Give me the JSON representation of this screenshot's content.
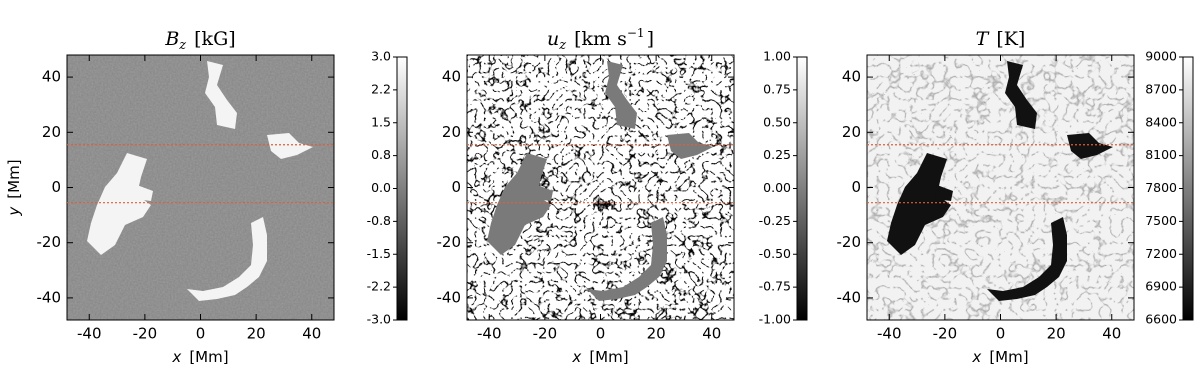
{
  "chart_data": [
    {
      "type": "heatmap",
      "title": {
        "var": "B",
        "sub": "z",
        "unit": "[kG]"
      },
      "xlabel": {
        "var": "x",
        "unit": "[Mm]"
      },
      "ylabel": {
        "var": "y",
        "unit": "[Mm]"
      },
      "xlim": [
        -48,
        48
      ],
      "ylim": [
        -48,
        48
      ],
      "xticks": [
        -40,
        -20,
        0,
        20,
        40
      ],
      "yticks": [
        -40,
        -20,
        0,
        20,
        40
      ],
      "hlines": [
        15.5,
        -5.5
      ],
      "hline_color": "#d9603b",
      "colormap": "gray",
      "clim": [
        -3,
        3
      ],
      "cticks": [
        {
          "value": 3,
          "label": "3.0"
        },
        {
          "value": 2.25,
          "label": "2.2"
        },
        {
          "value": 1.5,
          "label": "1.5"
        },
        {
          "value": 0.75,
          "label": "0.8"
        },
        {
          "value": 0,
          "label": "0.0"
        },
        {
          "value": -0.75,
          "label": "-0.8"
        },
        {
          "value": -1.5,
          "label": "-1.5"
        },
        {
          "value": -2.25,
          "label": "-2.2"
        },
        {
          "value": -3,
          "label": "-3.0"
        }
      ]
    },
    {
      "type": "heatmap",
      "title": {
        "var": "u",
        "sub": "z",
        "unit": "[km s",
        "sup": "−1",
        "unit_end": "]"
      },
      "xlabel": {
        "var": "x",
        "unit": "[Mm]"
      },
      "xlim": [
        -48,
        48
      ],
      "ylim": [
        -48,
        48
      ],
      "xticks": [
        -40,
        -20,
        0,
        20,
        40
      ],
      "yticks": [
        -40,
        -20,
        0,
        20,
        40
      ],
      "hlines": [
        15.5,
        -5.5
      ],
      "hline_color": "#d9603b",
      "colormap": "gray",
      "clim": [
        -1,
        1
      ],
      "cticks": [
        {
          "value": 1,
          "label": "1.00"
        },
        0.75,
        {
          "value": 0.5,
          "label": "0.50"
        },
        0.25,
        {
          "value": 0,
          "label": "0.00"
        },
        -0.25,
        {
          "value": -0.5,
          "label": "-0.50"
        },
        -0.75,
        {
          "value": -1,
          "label": "-1.00"
        }
      ]
    },
    {
      "type": "heatmap",
      "title": {
        "var": "T",
        "unit": "[K]"
      },
      "xlabel": {
        "var": "x",
        "unit": "[Mm]"
      },
      "xlim": [
        -48,
        48
      ],
      "ylim": [
        -48,
        48
      ],
      "xticks": [
        -40,
        -20,
        0,
        20,
        40
      ],
      "yticks": [
        -40,
        -20,
        0,
        20,
        40
      ],
      "hlines": [
        15.5,
        -5.5
      ],
      "hline_color": "#d9603b",
      "colormap": "gray",
      "clim": [
        6600,
        9000
      ],
      "cticks": [
        9000,
        8700,
        8400,
        8100,
        7800,
        7500,
        7200,
        6900,
        6600
      ]
    }
  ]
}
